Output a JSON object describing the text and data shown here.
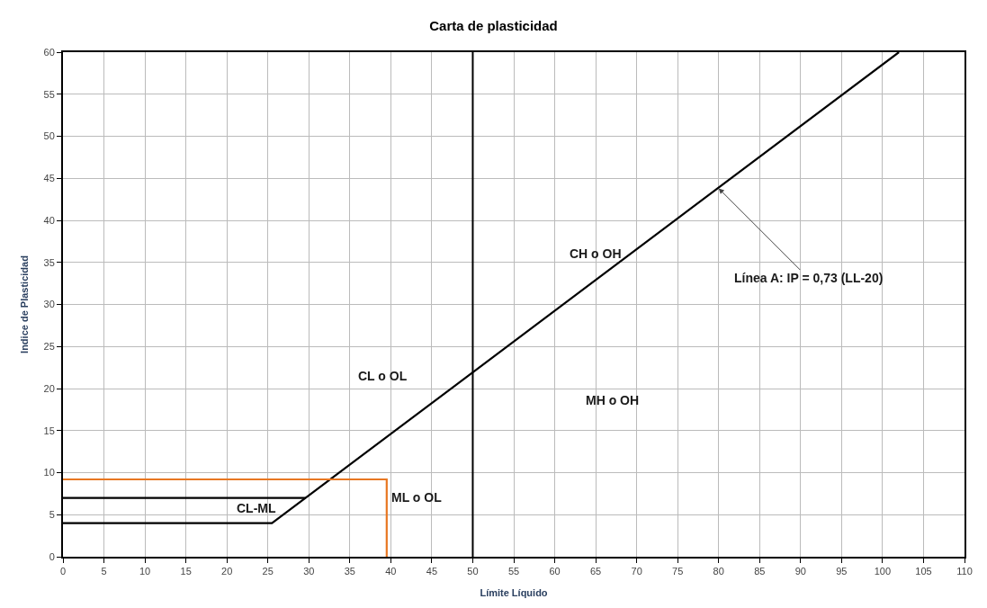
{
  "chart_data": {
    "type": "line",
    "title": "Carta de plasticidad",
    "xlabel": "Límite Líquido",
    "ylabel": "Indice de Plasticidad",
    "series": [
      {
        "x": [
          0,
          25.5,
          102
        ],
        "values": [
          4,
          4,
          60
        ],
        "color": "#000000"
      },
      {
        "x": [
          0,
          29.6
        ],
        "values": [
          7,
          7
        ],
        "color": "#000000"
      },
      {
        "x": [
          0,
          39.5,
          39.5
        ],
        "values": [
          9.2,
          9.2,
          0
        ],
        "color": "#e87722"
      }
    ],
    "ref_lines": [
      {
        "axis": "x",
        "value": 50,
        "color": "#000000"
      }
    ],
    "annotations": [
      "CH o OH",
      "CL o OL",
      "MH o OH",
      "ML o OL",
      "CL-ML",
      {
        "text": "Línea A: IP = 0,73 (LL-20)",
        "x": 80,
        "y": 43.8
      }
    ],
    "xlim": [
      0,
      110
    ],
    "xticks": [
      0,
      5,
      10,
      15,
      20,
      25,
      30,
      35,
      40,
      45,
      50,
      55,
      60,
      65,
      70,
      75,
      80,
      85,
      90,
      95,
      100,
      105,
      110
    ],
    "ylim": [
      0,
      60
    ],
    "yticks": [
      0,
      5,
      10,
      15,
      20,
      25,
      30,
      35,
      40,
      45,
      50,
      55,
      60
    ],
    "grid": true,
    "marker": "none",
    "line_style": "solid"
  }
}
